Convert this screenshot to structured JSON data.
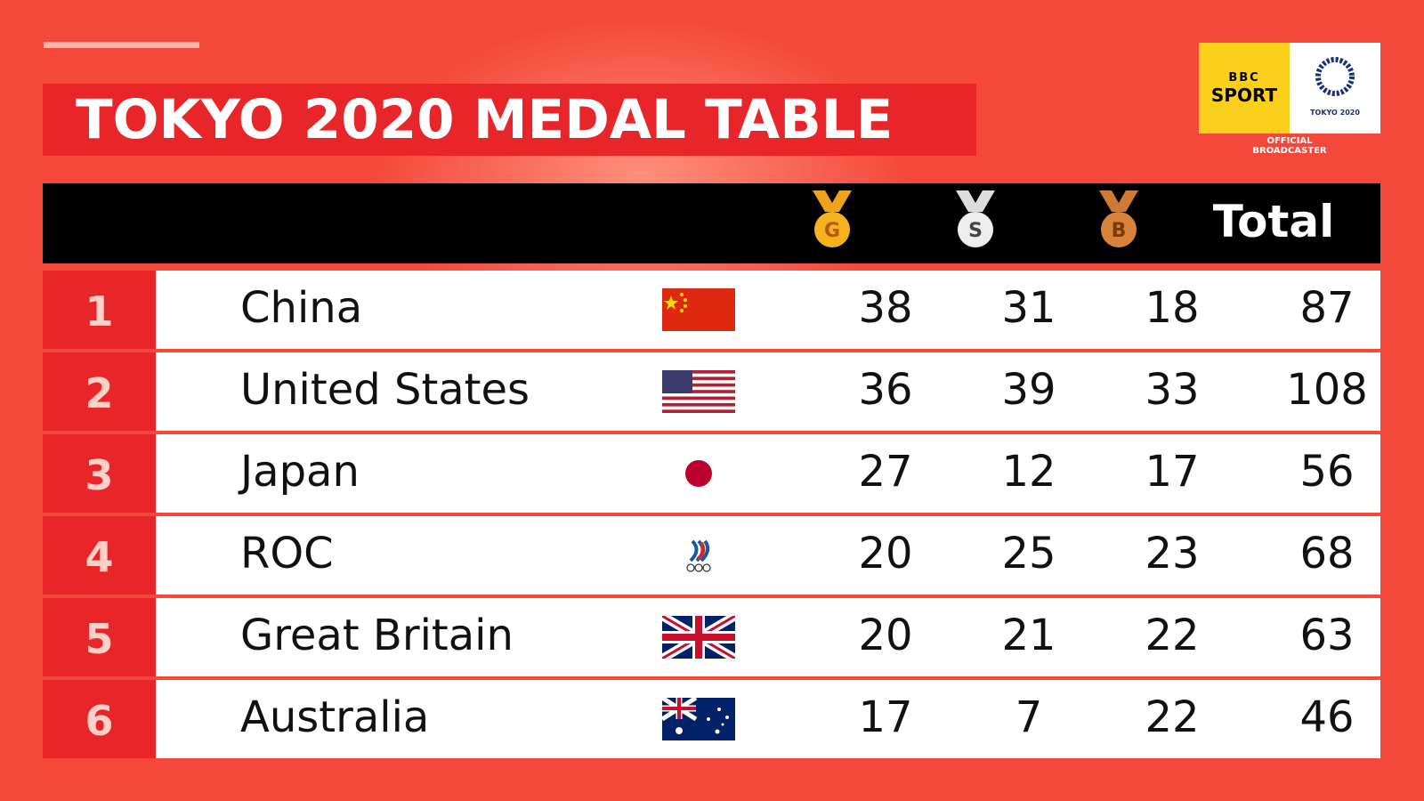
{
  "header": {
    "title": "TOKYO 2020 MEDAL TABLE"
  },
  "logo": {
    "bbc": "BBC",
    "sport": "SPORT",
    "games": "TOKYO 2020",
    "caption_1": "OFFICIAL",
    "caption_2": "BROADCASTER"
  },
  "table": {
    "columns": {
      "gold": "G",
      "silver": "S",
      "bronze": "B",
      "total": "Total"
    },
    "rows": [
      [
        "1",
        "China",
        "38",
        "31",
        "18",
        "87"
      ],
      [
        "2",
        "United States",
        "36",
        "39",
        "33",
        "108"
      ],
      [
        "3",
        "Japan",
        "27",
        "12",
        "17",
        "56"
      ],
      [
        "4",
        "ROC",
        "20",
        "25",
        "23",
        "68"
      ],
      [
        "5",
        "Great Britain",
        "20",
        "21",
        "22",
        "63"
      ],
      [
        "6",
        "Australia",
        "17",
        "7",
        "22",
        "46"
      ]
    ]
  }
}
